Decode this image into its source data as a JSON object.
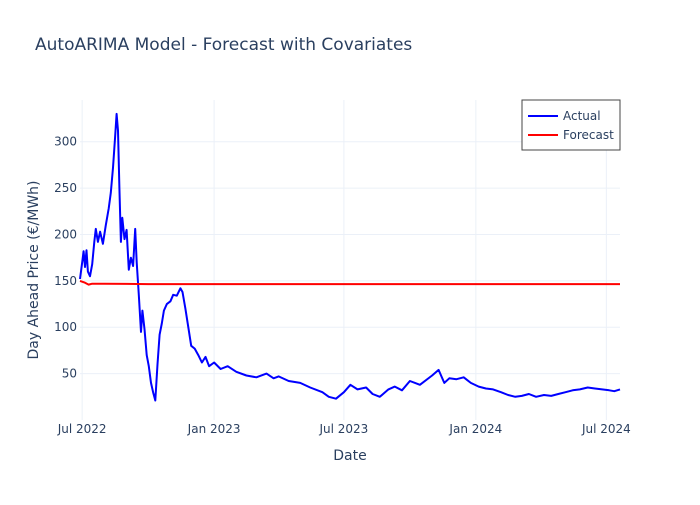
{
  "chart_data": {
    "type": "line",
    "title": "AutoARIMA Model - Forecast with Covariates",
    "xlabel": "Date",
    "ylabel": "Day Ahead Price (€/MWh)",
    "x_range": [
      "2022-06-28",
      "2024-07-20"
    ],
    "ylim": [
      0,
      345
    ],
    "x_ticks": [
      {
        "date": "2022-07-01",
        "label": "Jul 2022"
      },
      {
        "date": "2023-01-01",
        "label": "Jan 2023"
      },
      {
        "date": "2023-07-01",
        "label": "Jul 2023"
      },
      {
        "date": "2024-01-01",
        "label": "Jan 2024"
      },
      {
        "date": "2024-07-01",
        "label": "Jul 2024"
      }
    ],
    "y_ticks": [
      50,
      100,
      150,
      200,
      250,
      300
    ],
    "grid": true,
    "legend": {
      "position": "top-right"
    },
    "series": [
      {
        "name": "Actual",
        "color": "#0000ff",
        "points": [
          [
            "2022-06-28",
            152
          ],
          [
            "2022-07-01",
            170
          ],
          [
            "2022-07-03",
            182
          ],
          [
            "2022-07-05",
            165
          ],
          [
            "2022-07-07",
            183
          ],
          [
            "2022-07-09",
            160
          ],
          [
            "2022-07-12",
            155
          ],
          [
            "2022-07-15",
            168
          ],
          [
            "2022-07-18",
            192
          ],
          [
            "2022-07-20",
            206
          ],
          [
            "2022-07-23",
            192
          ],
          [
            "2022-07-26",
            203
          ],
          [
            "2022-07-30",
            190
          ],
          [
            "2022-08-03",
            210
          ],
          [
            "2022-08-07",
            228
          ],
          [
            "2022-08-10",
            245
          ],
          [
            "2022-08-13",
            272
          ],
          [
            "2022-08-16",
            305
          ],
          [
            "2022-08-18",
            330
          ],
          [
            "2022-08-20",
            312
          ],
          [
            "2022-08-22",
            250
          ],
          [
            "2022-08-24",
            192
          ],
          [
            "2022-08-26",
            218
          ],
          [
            "2022-08-29",
            195
          ],
          [
            "2022-09-01",
            205
          ],
          [
            "2022-09-04",
            162
          ],
          [
            "2022-09-07",
            175
          ],
          [
            "2022-09-10",
            166
          ],
          [
            "2022-09-13",
            206
          ],
          [
            "2022-09-15",
            170
          ],
          [
            "2022-09-18",
            135
          ],
          [
            "2022-09-21",
            95
          ],
          [
            "2022-09-23",
            118
          ],
          [
            "2022-09-26",
            98
          ],
          [
            "2022-09-29",
            70
          ],
          [
            "2022-10-02",
            58
          ],
          [
            "2022-10-05",
            40
          ],
          [
            "2022-10-08",
            30
          ],
          [
            "2022-10-11",
            21
          ],
          [
            "2022-10-14",
            60
          ],
          [
            "2022-10-17",
            92
          ],
          [
            "2022-10-20",
            104
          ],
          [
            "2022-10-23",
            118
          ],
          [
            "2022-10-27",
            125
          ],
          [
            "2022-11-01",
            128
          ],
          [
            "2022-11-05",
            135
          ],
          [
            "2022-11-10",
            134
          ],
          [
            "2022-11-15",
            142
          ],
          [
            "2022-11-18",
            138
          ],
          [
            "2022-11-22",
            120
          ],
          [
            "2022-11-26",
            100
          ],
          [
            "2022-11-30",
            80
          ],
          [
            "2022-12-05",
            77
          ],
          [
            "2022-12-10",
            70
          ],
          [
            "2022-12-15",
            62
          ],
          [
            "2022-12-20",
            68
          ],
          [
            "2022-12-25",
            58
          ],
          [
            "2023-01-01",
            62
          ],
          [
            "2023-01-10",
            55
          ],
          [
            "2023-01-20",
            58
          ],
          [
            "2023-02-01",
            52
          ],
          [
            "2023-02-15",
            48
          ],
          [
            "2023-03-01",
            46
          ],
          [
            "2023-03-15",
            50
          ],
          [
            "2023-03-25",
            45
          ],
          [
            "2023-04-01",
            47
          ],
          [
            "2023-04-15",
            42
          ],
          [
            "2023-05-01",
            40
          ],
          [
            "2023-05-15",
            35
          ],
          [
            "2023-06-01",
            30
          ],
          [
            "2023-06-10",
            25
          ],
          [
            "2023-06-20",
            23
          ],
          [
            "2023-07-01",
            30
          ],
          [
            "2023-07-10",
            38
          ],
          [
            "2023-07-20",
            33
          ],
          [
            "2023-08-01",
            35
          ],
          [
            "2023-08-10",
            28
          ],
          [
            "2023-08-20",
            25
          ],
          [
            "2023-09-01",
            33
          ],
          [
            "2023-09-10",
            36
          ],
          [
            "2023-09-20",
            32
          ],
          [
            "2023-10-01",
            42
          ],
          [
            "2023-10-15",
            38
          ],
          [
            "2023-11-01",
            48
          ],
          [
            "2023-11-10",
            54
          ],
          [
            "2023-11-18",
            40
          ],
          [
            "2023-11-25",
            45
          ],
          [
            "2023-12-05",
            44
          ],
          [
            "2023-12-15",
            46
          ],
          [
            "2023-12-25",
            40
          ],
          [
            "2024-01-05",
            36
          ],
          [
            "2024-01-15",
            34
          ],
          [
            "2024-01-25",
            33
          ],
          [
            "2024-02-05",
            30
          ],
          [
            "2024-02-15",
            27
          ],
          [
            "2024-02-25",
            25
          ],
          [
            "2024-03-05",
            26
          ],
          [
            "2024-03-15",
            28
          ],
          [
            "2024-03-25",
            25
          ],
          [
            "2024-04-05",
            27
          ],
          [
            "2024-04-15",
            26
          ],
          [
            "2024-04-25",
            28
          ],
          [
            "2024-05-05",
            30
          ],
          [
            "2024-05-15",
            32
          ],
          [
            "2024-05-25",
            33
          ],
          [
            "2024-06-05",
            35
          ],
          [
            "2024-06-15",
            34
          ],
          [
            "2024-06-25",
            33
          ],
          [
            "2024-07-05",
            32
          ],
          [
            "2024-07-12",
            31
          ],
          [
            "2024-07-20",
            33
          ]
        ]
      },
      {
        "name": "Forecast",
        "color": "#ff0000",
        "points": [
          [
            "2022-06-28",
            150
          ],
          [
            "2022-07-05",
            148
          ],
          [
            "2022-07-10",
            146
          ],
          [
            "2022-07-15",
            147
          ],
          [
            "2022-08-01",
            147
          ],
          [
            "2022-10-01",
            146.5
          ],
          [
            "2024-07-20",
            146.5
          ]
        ]
      }
    ]
  }
}
